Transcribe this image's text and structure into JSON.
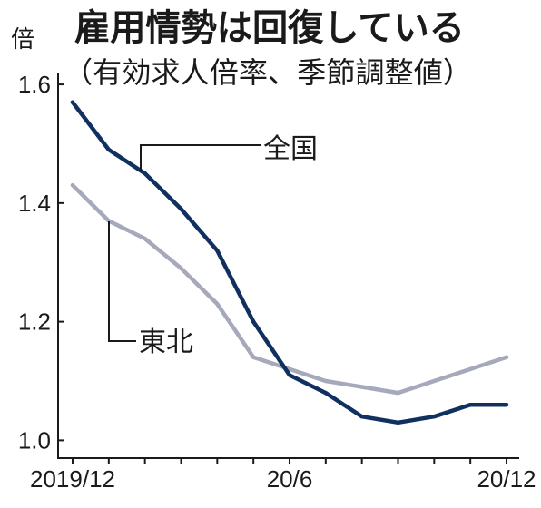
{
  "chart_data": {
    "type": "line",
    "title": "雇用情勢は回復している",
    "subtitle": "（有効求人倍率、季節調整値）",
    "xlabel": "",
    "ylabel": "倍",
    "x": [
      "2019/12",
      "20/1",
      "20/2",
      "20/3",
      "20/4",
      "20/5",
      "20/6",
      "20/7",
      "20/8",
      "20/9",
      "20/10",
      "20/11",
      "20/12"
    ],
    "x_tick_labels": [
      "2019/12",
      "20/6",
      "20/12"
    ],
    "y_ticks": [
      "1.6",
      "1.4",
      "1.2",
      "1.0"
    ],
    "ylim": [
      0.97,
      1.62
    ],
    "grid": false,
    "legend": "inline",
    "series": [
      {
        "name": "全国",
        "color": "#10305f",
        "values": [
          1.57,
          1.49,
          1.45,
          1.39,
          1.32,
          1.2,
          1.11,
          1.08,
          1.04,
          1.03,
          1.04,
          1.06,
          1.06
        ]
      },
      {
        "name": "東北",
        "color": "#a6a9bb",
        "values": [
          1.43,
          1.37,
          1.34,
          1.29,
          1.23,
          1.14,
          1.12,
          1.1,
          1.09,
          1.08,
          1.1,
          1.12,
          1.14
        ]
      }
    ]
  }
}
